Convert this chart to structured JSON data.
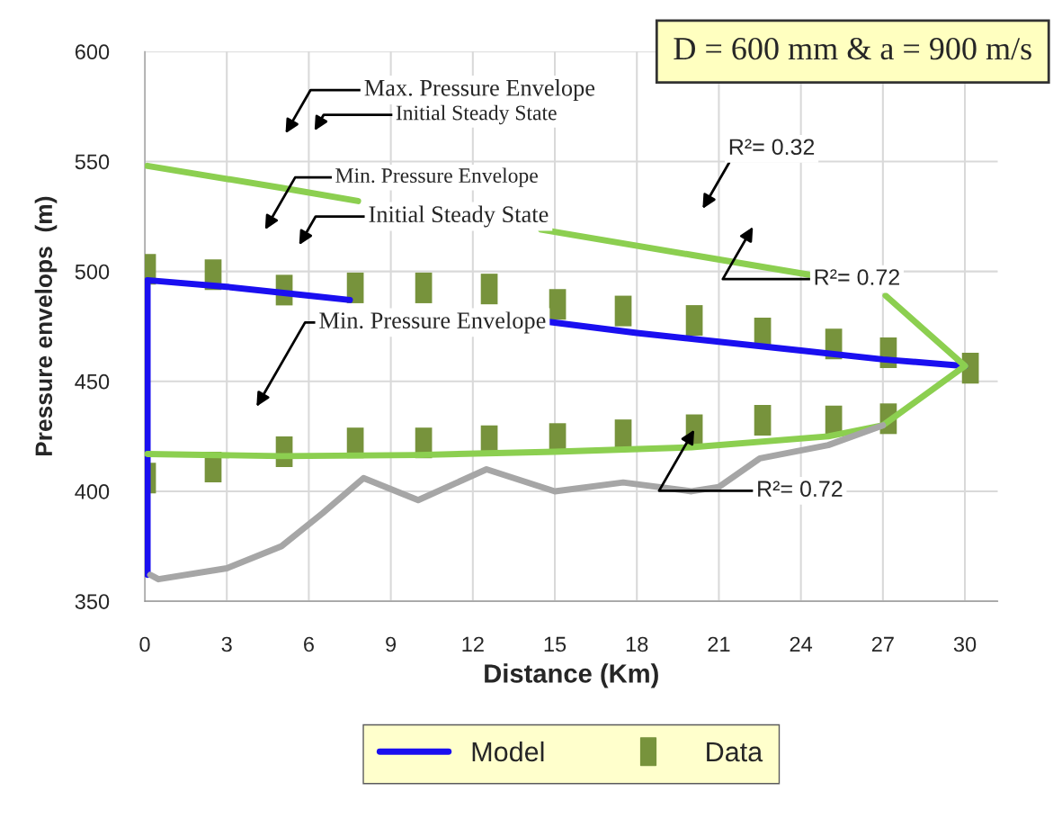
{
  "chart_data": {
    "type": "line",
    "xlabel": "Distance (Km)",
    "ylabel": "Pressure envelops  (m)",
    "xlim": [
      0,
      31.2
    ],
    "xticks": [
      0,
      3,
      6,
      9,
      12,
      15,
      18,
      21,
      24,
      27,
      30
    ],
    "ylim": [
      350,
      600
    ],
    "yticks": [
      350,
      400,
      450,
      500,
      550,
      600
    ],
    "grid": true,
    "legend": "bottom",
    "series": [
      {
        "name": "Model",
        "color": "#1a0ff0",
        "x": [
          0.1,
          0.1,
          3,
          6,
          7.5,
          12,
          14.8,
          18,
          21,
          24,
          27,
          30
        ],
        "values": [
          362,
          496,
          493,
          489,
          487,
          null,
          477,
          472,
          468,
          464,
          460,
          457
        ]
      },
      {
        "color": "#8ccf50",
        "x": [
          0.1,
          5,
          7.8,
          11.5,
          14.5,
          20,
          24.3,
          25.6,
          27.1,
          30
        ],
        "values": [
          548,
          538,
          532,
          null,
          519,
          507.5,
          498.5,
          null,
          489,
          457
        ]
      },
      {
        "color": "#8ccf50",
        "x": [
          0.1,
          5,
          10,
          15,
          20,
          25,
          27,
          30
        ],
        "values": [
          417,
          416,
          416.5,
          418,
          420,
          425,
          430,
          457
        ]
      },
      {
        "color": "#a6a6a6",
        "x": [
          0.2,
          0.5,
          3,
          5,
          6.5,
          8,
          10,
          12.5,
          15,
          17.5,
          20,
          21,
          22.5,
          25,
          27
        ],
        "values": [
          362,
          360,
          365,
          375,
          390,
          406,
          396,
          410,
          400,
          404,
          400,
          402,
          415,
          421,
          430
        ]
      },
      {
        "type": "scatter",
        "name": "Data",
        "color": "#77933c",
        "marker": "square",
        "x": [
          0.1,
          2.5,
          5.1,
          7.7,
          10.2,
          12.6,
          15.1,
          17.5,
          20.1,
          22.6,
          25.2,
          27.2,
          30.2,
          0.1,
          2.5,
          5.1,
          7.7,
          10.2,
          12.6,
          15.1,
          17.5,
          20.1,
          22.6,
          25.2,
          27.2
        ],
        "values": [
          501,
          498.5,
          491.5,
          492.5,
          492.5,
          492,
          485,
          482,
          477.7,
          472,
          467,
          463,
          456,
          406,
          411,
          418,
          422,
          422,
          423,
          424,
          425.7,
          428,
          432.3,
          432,
          433
        ]
      }
    ],
    "annotations": [
      "D = 600 mm & a = 900 m/s",
      "Max. Pressure Envelope",
      "Initial Steady State",
      "Min. Pressure Envelope",
      "Initial Steady State",
      "Min. Pressure Envelope",
      "R²= 0.32",
      "R²= 0.72",
      {
        "text": "R²= 0.72",
        "x": 20.1,
        "y": 428
      }
    ]
  }
}
